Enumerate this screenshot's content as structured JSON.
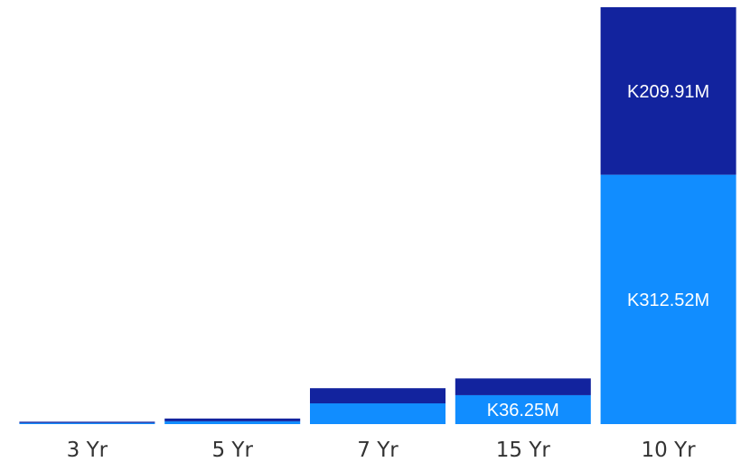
{
  "chart_data": {
    "type": "bar",
    "stacked": true,
    "categories": [
      "3 Yr",
      "5 Yr",
      "7 Yr",
      "15 Yr",
      "10 Yr"
    ],
    "series": [
      {
        "values": [
          1.5,
          3.5,
          26.0,
          36.25,
          312.52
        ],
        "color": "#118DFF",
        "labels": [
          "",
          "",
          "",
          "K36.25M",
          "K312.52M"
        ]
      },
      {
        "values": [
          1.5,
          3.5,
          19.0,
          21.0,
          209.91
        ],
        "color": "#12239E",
        "labels": [
          "",
          "",
          "",
          "",
          "K209.91M"
        ]
      }
    ],
    "ylim": [
      0,
      522.43
    ],
    "legend": "none",
    "grid": false,
    "title": "",
    "xlabel": "",
    "ylabel": ""
  }
}
